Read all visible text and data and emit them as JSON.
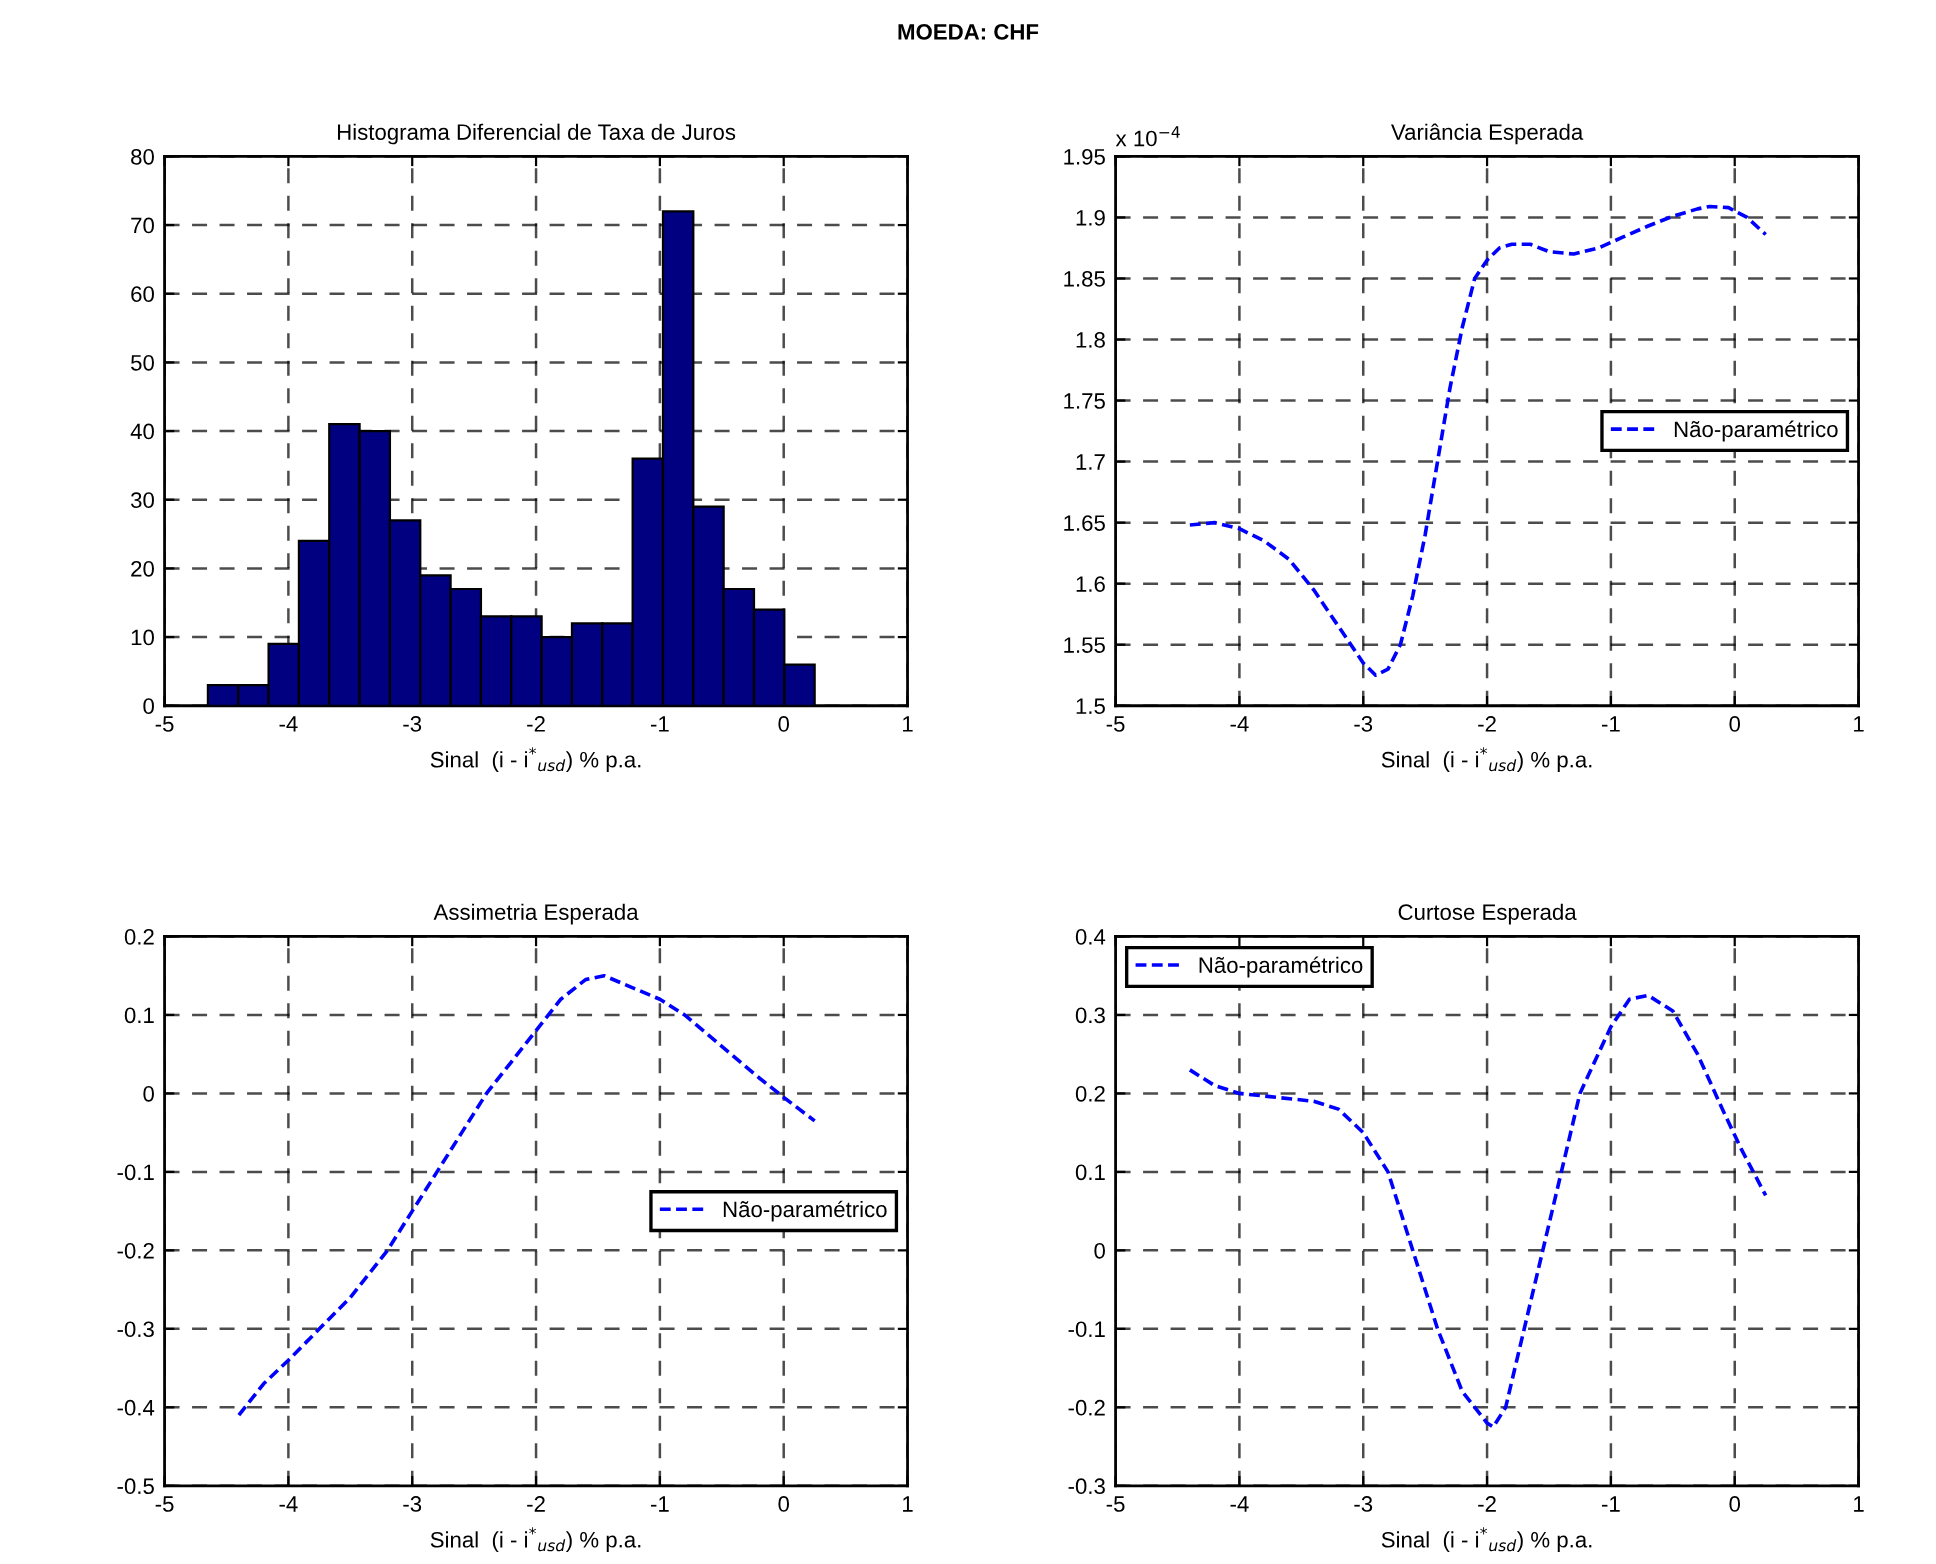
{
  "chart_data": [
    {
      "type": "histogram",
      "title": "Histograma Diferencial de Taxa de Juros",
      "xlabel": "Sinal  (i - i$^{*}$$_{usd}$) % p.a.",
      "annotations": [
        "MOEDA: CHF"
      ],
      "bins": [
        -4.65,
        -4.405,
        -4.16,
        -3.915,
        -3.67,
        -3.425,
        -3.18,
        -2.935,
        -2.69,
        -2.445,
        -2.2,
        -1.955,
        -1.71,
        -1.465,
        -1.22,
        -0.975,
        -0.73,
        -0.485,
        -0.24,
        0.005,
        0.25
      ],
      "values": [
        3,
        3,
        9,
        24,
        41,
        40,
        27,
        19,
        17,
        13,
        13,
        10,
        12,
        12,
        36,
        72,
        29,
        17,
        14,
        6
      ],
      "color": "#000080",
      "xlim": [
        -5,
        1
      ],
      "ylim": [
        0,
        80
      ],
      "xticks": [
        -5,
        -4,
        -3,
        -2,
        -1,
        0,
        1
      ],
      "yticks": [
        0,
        10,
        20,
        30,
        40,
        50,
        60,
        70,
        80
      ],
      "grid": true,
      "legend": false
    },
    {
      "type": "line",
      "title": "Variância Esperada",
      "xlabel": "Sinal  (i - i$^{*}$$_{usd}$) % p.a.",
      "annotations": [
        "x 10$^{−4}$"
      ],
      "series": [
        {
          "name": "Não-paramétrico",
          "color": "#0000ff",
          "x": [
            -4.4,
            -4.2,
            -4.0,
            -3.8,
            -3.6,
            -3.4,
            -3.2,
            -3.0,
            -2.9,
            -2.8,
            -2.7,
            -2.6,
            -2.5,
            -2.4,
            -2.3,
            -2.2,
            -2.1,
            -2.0,
            -1.9,
            -1.8,
            -1.65,
            -1.5,
            -1.3,
            -1.1,
            -0.9,
            -0.7,
            -0.5,
            -0.3,
            -0.2,
            -0.05,
            0.1,
            0.25
          ],
          "values": [
            1.648,
            1.65,
            1.645,
            1.635,
            1.62,
            1.595,
            1.565,
            1.535,
            1.525,
            1.53,
            1.55,
            1.59,
            1.64,
            1.7,
            1.76,
            1.81,
            1.85,
            1.865,
            1.875,
            1.878,
            1.878,
            1.872,
            1.87,
            1.875,
            1.884,
            1.893,
            1.901,
            1.907,
            1.909,
            1.908,
            1.9,
            1.886
          ]
        }
      ],
      "xlim": [
        -5,
        1
      ],
      "ylim": [
        1.5,
        1.95
      ],
      "xticks": [
        -5,
        -4,
        -3,
        -2,
        -1,
        0,
        1
      ],
      "yticks": [
        1.5,
        1.55,
        1.6,
        1.65,
        1.7,
        1.75,
        1.8,
        1.85,
        1.9,
        1.95
      ],
      "grid": true,
      "legend": "center right",
      "line_style": "dashed",
      "marker": "none"
    },
    {
      "type": "line",
      "title": "Assimetria Esperada",
      "xlabel": "Sinal  (i - i$^{*}$$_{usd}$) % p.a.",
      "series": [
        {
          "name": "Não-paramétrico",
          "color": "#0000ff",
          "x": [
            -4.4,
            -4.2,
            -4.0,
            -3.75,
            -3.5,
            -3.3,
            -3.2,
            -3.0,
            -2.8,
            -2.6,
            -2.4,
            -2.2,
            -2.0,
            -1.8,
            -1.6,
            -1.45,
            -1.3,
            -1.0,
            -0.8,
            -0.5,
            -0.2,
            0.0,
            0.25
          ],
          "values": [
            -0.41,
            -0.37,
            -0.34,
            -0.3,
            -0.26,
            -0.22,
            -0.2,
            -0.15,
            -0.1,
            -0.05,
            0.0,
            0.04,
            0.08,
            0.12,
            0.145,
            0.15,
            0.14,
            0.12,
            0.1,
            0.06,
            0.02,
            -0.005,
            -0.035
          ]
        }
      ],
      "xlim": [
        -5,
        1
      ],
      "ylim": [
        -0.5,
        0.2
      ],
      "xticks": [
        -5,
        -4,
        -3,
        -2,
        -1,
        0,
        1
      ],
      "yticks": [
        -0.5,
        -0.4,
        -0.3,
        -0.2,
        -0.1,
        0,
        0.1,
        0.2
      ],
      "grid": true,
      "legend": "center right",
      "line_style": "dashed",
      "marker": "none"
    },
    {
      "type": "line",
      "title": "Curtose Esperada",
      "xlabel": "Sinal  (i - i$^{*}$$_{usd}$) % p.a.",
      "series": [
        {
          "name": "Não-paramétrico",
          "color": "#0000ff",
          "x": [
            -4.4,
            -4.2,
            -4.0,
            -3.7,
            -3.4,
            -3.2,
            -3.0,
            -2.8,
            -2.6,
            -2.4,
            -2.2,
            -2.0,
            -1.95,
            -1.85,
            -1.7,
            -1.55,
            -1.4,
            -1.25,
            -1.0,
            -0.85,
            -0.7,
            -0.5,
            -0.3,
            -0.1,
            0.05,
            0.25
          ],
          "values": [
            0.23,
            0.21,
            0.2,
            0.195,
            0.19,
            0.18,
            0.15,
            0.1,
            0.0,
            -0.1,
            -0.18,
            -0.22,
            -0.225,
            -0.2,
            -0.1,
            0.0,
            0.1,
            0.2,
            0.285,
            0.32,
            0.325,
            0.305,
            0.25,
            0.18,
            0.13,
            0.07
          ]
        }
      ],
      "xlim": [
        -5,
        1
      ],
      "ylim": [
        -0.3,
        0.4
      ],
      "xticks": [
        -5,
        -4,
        -3,
        -2,
        -1,
        0,
        1
      ],
      "yticks": [
        -0.3,
        -0.2,
        -0.1,
        0,
        0.1,
        0.2,
        0.3,
        0.4
      ],
      "grid": true,
      "legend": "top left",
      "line_style": "dashed",
      "marker": "none"
    }
  ]
}
